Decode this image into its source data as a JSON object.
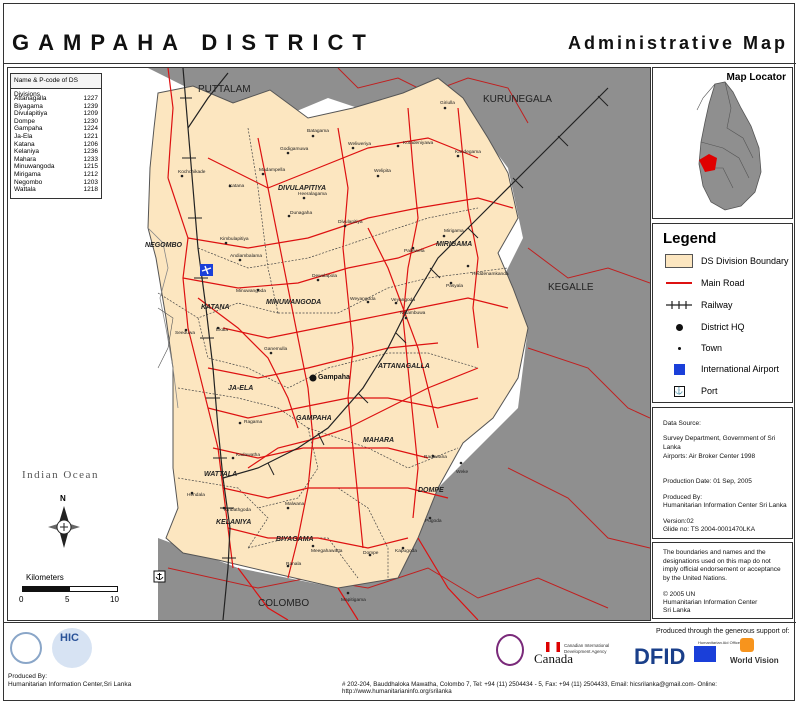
{
  "header": {
    "title": "GAMPAHA DISTRICT",
    "subtitle": "Administrative Map"
  },
  "ds_table": {
    "heading": "Name & P-code  of DS Divisions",
    "rows": [
      {
        "name": "Attanagalla",
        "code": "1227"
      },
      {
        "name": "Biyagama",
        "code": "1239"
      },
      {
        "name": "Divulapitiya",
        "code": "1209"
      },
      {
        "name": "Dompe",
        "code": "1230"
      },
      {
        "name": "Gampaha",
        "code": "1224"
      },
      {
        "name": "Ja-Ela",
        "code": "1221"
      },
      {
        "name": "Katana",
        "code": "1206"
      },
      {
        "name": "Kelaniya",
        "code": "1236"
      },
      {
        "name": "Mahara",
        "code": "1233"
      },
      {
        "name": "Minuwangoda",
        "code": "1215"
      },
      {
        "name": "Mirigama",
        "code": "1212"
      },
      {
        "name": "Negombo",
        "code": "1203"
      },
      {
        "name": "Wattala",
        "code": "1218"
      }
    ]
  },
  "map_labels": {
    "neighbors": {
      "puttalam": "PUTTALAM",
      "kurunegala": "KURUNEGALA",
      "kegalle": "KEGALLE",
      "colombo": "COLOMBO"
    },
    "ocean": "Indian Ocean",
    "ds": {
      "negombo": "NEGOMBO",
      "katana": "KATANA",
      "divulapitiya": "DIVULAPITIYA",
      "mirigama": "MIRIGAMA",
      "minuwangoda": "MINUWANGODA",
      "attanagalla": "ATTANAGALLA",
      "jaela": "JA-ELA",
      "gampaha": "GAMPAHA",
      "mahara": "MAHARA",
      "wattala": "WATTALA",
      "dompe": "DOMPE",
      "kelaniya": "KELANIYA",
      "biyagama": "BIYAGAMA"
    },
    "hq": "Gampaha",
    "towns": {
      "t1": "Batagama",
      "t2": "Godigamuwa",
      "t3": "Weliweriya",
      "t4": "Kotadeniyawa",
      "t5": "Giriulla",
      "t6": "Kandegama",
      "t7": "Welipita",
      "t8": "Kochchikade",
      "t9": "Katana",
      "t10": "Madampella",
      "t11": "Heeralagama",
      "t12": "Dunagaha",
      "t13": "Divulapitiya",
      "t14": "Kimbulapitiya",
      "t15": "Andiambalama",
      "t16": "Dewalapola",
      "t17": "Minuwangoda",
      "t18": "Weyangoda",
      "t19": "Nittambuwa",
      "t20": "Veyangoda",
      "t21": "Pasyala",
      "t22": "Heddenamkanda",
      "t23": "Seeduwa",
      "t24": "Ekala",
      "t25": "Gampaha",
      "t26": "Ganemulla",
      "t27": "Kadawatha",
      "t28": "Ragama",
      "t29": "Hendala",
      "t30": "Kiribathgoda",
      "t31": "Malwana",
      "t32": "Dompe",
      "t33": "Kapugoda",
      "t34": "Pugoda",
      "t35": "Radawana",
      "t36": "Weke",
      "t37": "Ranala",
      "t38": "Mapitigama",
      "t39": "Pallewela",
      "t40": "Mirigama",
      "t41": "Meegahawatta"
    }
  },
  "scale": {
    "title": "Kilometers",
    "ticks": [
      "0",
      "5",
      "10"
    ]
  },
  "north_label": "N",
  "locator": {
    "title": "Map Locator"
  },
  "legend": {
    "title": "Legend",
    "items": [
      {
        "label": "DS Division Boundary"
      },
      {
        "label": "Main Road"
      },
      {
        "label": "Railway"
      },
      {
        "label": "District HQ"
      },
      {
        "label": "Town"
      },
      {
        "label": "International Airport"
      },
      {
        "label": "Port"
      }
    ]
  },
  "info": {
    "data_source": "Data Source:",
    "survey": "Survey Department, Government of Sri Lanka",
    "airports": "Airports: Air Broker Center 1998",
    "date": "Production Date: 01 Sep, 2005",
    "produced_by": "Produced By:",
    "produced_org": "Humanitarian Information Center Sri Lanka",
    "version": "Version:02",
    "glide": "Glide no: TS 2004-0001470LKA"
  },
  "disclaimer": {
    "text": "The boundaries and names and the designations used on this map do not imply official endorsement or acceptance by the United Nations.",
    "copyright": "© 2005 UN",
    "org1": "Humanitarian Information Center",
    "org2": "Sri Lanka"
  },
  "footer": {
    "support": "Produced through the generous support of:",
    "produced_by": "Produced By:",
    "produced_org": "Humanitarian Information Center,Sri Lanka",
    "hic": "HIC",
    "address": "# 202-204, Bauddhaloka Mawatha, Colombo 7, Tel: +94 (11) 2504434 - 5, Fax: +94 (11) 2504433, Email: hicsrilanka@gmail.com- Online: http://www.humanitarianinfo.org/srilanka",
    "canada": "Canada",
    "cida": "Canadian International Development Agency",
    "dfid": "DFID",
    "echo": "Humanitarian Aid Office",
    "worldvision": "World Vision"
  },
  "colors": {
    "district_fill": "#fce6c0",
    "neighbor_fill": "#8c8c8c",
    "road": "#dd1111",
    "ocean": "#ffffff",
    "airport": "#1a3fd9"
  }
}
